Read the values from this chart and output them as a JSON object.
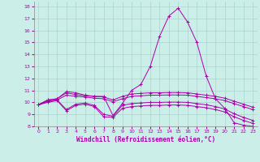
{
  "xlabel": "Windchill (Refroidissement éolien,°C)",
  "bg_color": "#cceee8",
  "grid_color": "#aad4ce",
  "line_color": "#aa00aa",
  "xlim": [
    -0.5,
    23.5
  ],
  "ylim": [
    8,
    18.4
  ],
  "yticks": [
    8,
    9,
    10,
    11,
    12,
    13,
    14,
    15,
    16,
    17,
    18
  ],
  "xticks": [
    0,
    1,
    2,
    3,
    4,
    5,
    6,
    7,
    8,
    9,
    10,
    11,
    12,
    13,
    14,
    15,
    16,
    17,
    18,
    19,
    20,
    21,
    22,
    23
  ],
  "series": [
    [
      9.8,
      10.2,
      10.3,
      10.9,
      10.8,
      10.6,
      10.5,
      10.5,
      8.9,
      9.9,
      11.0,
      11.5,
      13.0,
      15.5,
      17.2,
      17.85,
      16.7,
      15.0,
      12.2,
      10.3,
      9.5,
      8.3,
      8.1,
      8.0
    ],
    [
      9.8,
      10.2,
      10.3,
      10.8,
      10.65,
      10.55,
      10.5,
      10.45,
      10.2,
      10.5,
      10.7,
      10.75,
      10.8,
      10.8,
      10.82,
      10.82,
      10.8,
      10.7,
      10.6,
      10.5,
      10.35,
      10.1,
      9.85,
      9.6
    ],
    [
      9.8,
      10.1,
      10.2,
      10.6,
      10.5,
      10.45,
      10.35,
      10.3,
      10.05,
      10.3,
      10.5,
      10.55,
      10.6,
      10.6,
      10.62,
      10.62,
      10.6,
      10.5,
      10.4,
      10.3,
      10.15,
      9.9,
      9.65,
      9.4
    ],
    [
      9.8,
      10.1,
      10.2,
      9.4,
      9.85,
      9.95,
      9.75,
      9.0,
      8.85,
      9.75,
      9.9,
      9.95,
      10.0,
      10.0,
      10.02,
      10.02,
      10.0,
      9.9,
      9.8,
      9.65,
      9.45,
      9.05,
      8.75,
      8.5
    ],
    [
      9.8,
      10.0,
      10.15,
      9.3,
      9.75,
      9.85,
      9.65,
      8.8,
      8.75,
      9.5,
      9.65,
      9.7,
      9.75,
      9.75,
      9.78,
      9.78,
      9.75,
      9.65,
      9.55,
      9.4,
      9.2,
      8.8,
      8.5,
      8.25
    ]
  ]
}
